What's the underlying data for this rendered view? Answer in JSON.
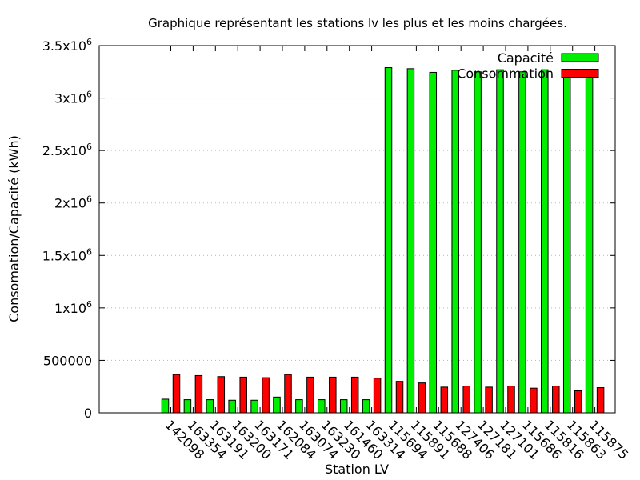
{
  "chart_data": {
    "type": "bar",
    "title": "Graphique représentant les stations lv les plus et les moins chargées.",
    "xlabel": "Station LV",
    "ylabel": "Consomation/Capacité (kWh)",
    "ylim": [
      0,
      3500000
    ],
    "yticks": [
      {
        "value": 0,
        "base": "0",
        "exp": ""
      },
      {
        "value": 500000,
        "base": "500000",
        "exp": ""
      },
      {
        "value": 1000000,
        "base": "1x10",
        "exp": "6"
      },
      {
        "value": 1500000,
        "base": "1.5x10",
        "exp": "6"
      },
      {
        "value": 2000000,
        "base": "2x10",
        "exp": "6"
      },
      {
        "value": 2500000,
        "base": "2.5x10",
        "exp": "6"
      },
      {
        "value": 3000000,
        "base": "3x10",
        "exp": "6"
      },
      {
        "value": 3500000,
        "base": "3.5x10",
        "exp": "6"
      }
    ],
    "grid": true,
    "legend_position": "top-right",
    "categories": [
      "142098",
      "163354",
      "163191",
      "163200",
      "163171",
      "162084",
      "163074",
      "163230",
      "161460",
      "163314",
      "115694",
      "115891",
      "115688",
      "127406",
      "127181",
      "127101",
      "115686",
      "115816",
      "115863",
      "115875"
    ],
    "series": [
      {
        "name": "Capacité",
        "color": "#00ee00",
        "values": [
          130000,
          125000,
          125000,
          120000,
          120000,
          150000,
          125000,
          125000,
          125000,
          125000,
          3290000,
          3280000,
          3245000,
          3265000,
          3250000,
          3270000,
          3250000,
          3270000,
          3260000,
          3265000
        ]
      },
      {
        "name": "Consommation",
        "color": "#ff0000",
        "values": [
          365000,
          355000,
          345000,
          340000,
          335000,
          365000,
          340000,
          340000,
          340000,
          330000,
          300000,
          285000,
          245000,
          255000,
          245000,
          255000,
          235000,
          255000,
          210000,
          240000
        ]
      }
    ]
  }
}
